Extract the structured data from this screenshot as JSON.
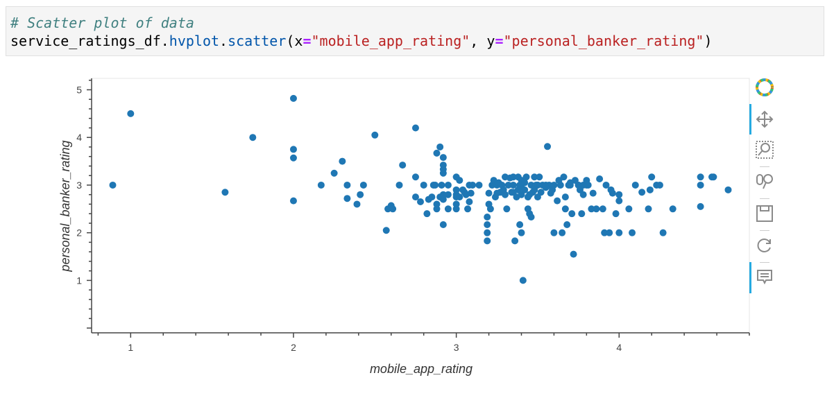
{
  "code": {
    "comment": "# Scatter plot of data",
    "line_prefix": "service_ratings_df.",
    "method1": "hvplot",
    "dot": ".",
    "method2": "scatter",
    "open": "(",
    "kw_x": "x",
    "eq1": "=",
    "str_x": "\"mobile_app_rating\"",
    "comma": ", ",
    "kw_y": "y",
    "eq2": "=",
    "str_y": "\"personal_banker_rating\"",
    "close": ")"
  },
  "toolbar": {
    "tools": [
      "bokeh-logo-icon",
      "pan-icon",
      "box-zoom-icon",
      "wheel-zoom-icon",
      "save-icon",
      "reset-icon",
      "hover-icon"
    ]
  },
  "colors": {
    "point": "#1f77b4",
    "axis": "#444444",
    "tick_text": "#444444"
  },
  "chart_data": {
    "type": "scatter",
    "xlabel": "mobile_app_rating",
    "ylabel": "personal_banker_rating",
    "xlim": [
      0.76,
      4.8
    ],
    "ylim": [
      -0.1,
      5.24
    ],
    "xticks": [
      1,
      2,
      3,
      4
    ],
    "yticks": [
      1,
      2,
      3,
      4,
      5
    ],
    "grid": false,
    "x": [
      0.89,
      1.0,
      1.58,
      1.75,
      2.0,
      2.0,
      2.0,
      2.0,
      2.17,
      2.25,
      2.3,
      2.33,
      2.33,
      2.39,
      2.41,
      2.43,
      2.5,
      2.57,
      2.58,
      2.6,
      2.61,
      2.65,
      2.67,
      2.75,
      2.75,
      2.75,
      2.78,
      2.8,
      2.82,
      2.83,
      2.85,
      2.86,
      2.87,
      2.88,
      2.88,
      2.9,
      2.9,
      2.91,
      2.92,
      2.92,
      2.92,
      2.92,
      2.92,
      2.92,
      2.95,
      2.95,
      2.95,
      3.0,
      3.0,
      3.0,
      3.0,
      3.0,
      3.0,
      3.02,
      3.02,
      3.04,
      3.05,
      3.06,
      3.07,
      3.08,
      3.08,
      3.09,
      3.1,
      3.14,
      3.19,
      3.19,
      3.19,
      3.19,
      3.2,
      3.2,
      3.21,
      3.22,
      3.23,
      3.24,
      3.25,
      3.25,
      3.26,
      3.27,
      3.28,
      3.29,
      3.3,
      3.3,
      3.31,
      3.32,
      3.33,
      3.34,
      3.35,
      3.35,
      3.36,
      3.37,
      3.38,
      3.38,
      3.39,
      3.39,
      3.4,
      3.4,
      3.4,
      3.41,
      3.42,
      3.43,
      3.44,
      3.44,
      3.45,
      3.46,
      3.46,
      3.47,
      3.48,
      3.48,
      3.49,
      3.5,
      3.5,
      3.5,
      3.51,
      3.52,
      3.53,
      3.55,
      3.56,
      3.57,
      3.58,
      3.59,
      3.6,
      3.6,
      3.62,
      3.63,
      3.64,
      3.65,
      3.66,
      3.67,
      3.67,
      3.68,
      3.69,
      3.7,
      3.71,
      3.72,
      3.73,
      3.75,
      3.75,
      3.76,
      3.77,
      3.78,
      3.8,
      3.8,
      3.81,
      3.83,
      3.84,
      3.86,
      3.88,
      3.9,
      3.91,
      3.92,
      3.94,
      3.96,
      3.98,
      4.0,
      4.0,
      4.0,
      4.06,
      4.08,
      4.1,
      4.14,
      4.18,
      4.19,
      4.2,
      4.23,
      4.25,
      4.27,
      4.33,
      4.5,
      4.5,
      4.5,
      4.57,
      4.58,
      4.67,
      2.88,
      2.92,
      3.35,
      3.4,
      3.42,
      3.45,
      3.55,
      3.7,
      3.78,
      3.95
    ],
    "y": [
      3.0,
      4.5,
      2.85,
      4.0,
      4.82,
      3.75,
      3.57,
      2.67,
      3.0,
      3.25,
      3.5,
      3.0,
      2.72,
      2.6,
      2.8,
      3.0,
      4.05,
      2.05,
      2.5,
      2.57,
      2.5,
      3.0,
      3.42,
      2.75,
      4.2,
      3.17,
      2.65,
      3.0,
      2.4,
      2.7,
      2.75,
      3.0,
      3.0,
      3.67,
      2.5,
      3.8,
      2.75,
      3.0,
      3.58,
      3.42,
      3.33,
      3.25,
      2.8,
      2.17,
      2.5,
      2.8,
      3.0,
      3.17,
      2.5,
      2.9,
      2.8,
      2.75,
      2.6,
      3.1,
      2.75,
      2.9,
      2.85,
      2.8,
      2.5,
      3.0,
      2.65,
      2.83,
      3.0,
      3.0,
      1.83,
      2.0,
      2.17,
      2.33,
      2.6,
      2.83,
      2.5,
      3.0,
      3.1,
      2.75,
      3.0,
      2.83,
      3.05,
      2.85,
      3.0,
      2.9,
      2.8,
      3.17,
      2.5,
      3.0,
      3.15,
      2.85,
      3.17,
      3.0,
      1.83,
      2.75,
      2.9,
      3.17,
      3.0,
      2.17,
      2.0,
      3.1,
      2.8,
      1.0,
      2.9,
      3.17,
      2.75,
      2.5,
      2.4,
      3.0,
      2.33,
      2.85,
      3.17,
      2.9,
      3.0,
      2.75,
      3.0,
      3.0,
      3.17,
      2.85,
      3.0,
      3.0,
      3.81,
      3.0,
      2.83,
      2.9,
      3.0,
      2.0,
      2.67,
      3.1,
      3.0,
      2.0,
      3.17,
      2.75,
      2.5,
      2.17,
      3.0,
      3.0,
      2.4,
      1.55,
      3.1,
      3.0,
      3.0,
      2.9,
      2.4,
      3.0,
      3.1,
      3.0,
      3.0,
      2.5,
      2.83,
      2.5,
      3.13,
      2.5,
      2.0,
      3.0,
      2.0,
      2.83,
      2.4,
      2.0,
      2.8,
      2.67,
      2.5,
      2.0,
      3.0,
      2.85,
      2.5,
      2.9,
      3.17,
      3.0,
      3.0,
      2.0,
      2.5,
      2.55,
      3.17,
      3.0,
      3.17,
      3.17,
      2.9,
      2.6,
      2.7,
      2.85,
      2.95,
      3.05,
      2.8,
      2.95,
      3.05,
      2.8,
      2.9
    ]
  }
}
